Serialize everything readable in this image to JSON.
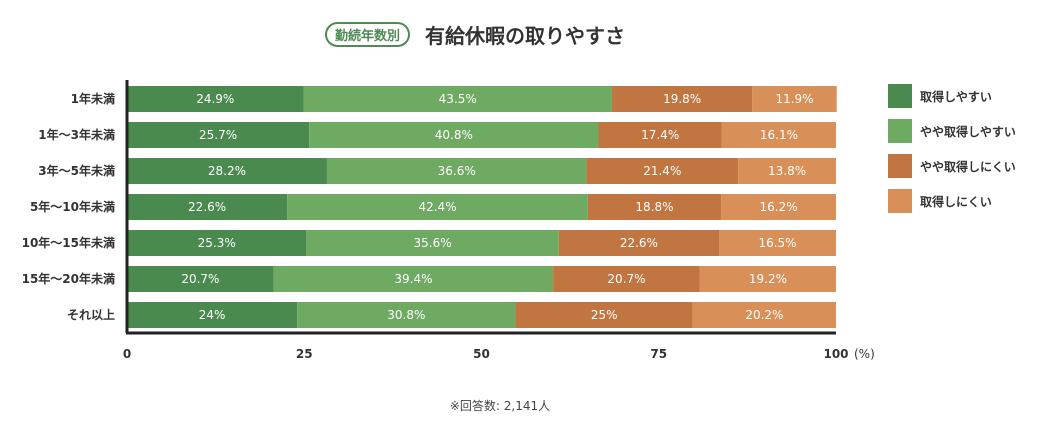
{
  "title": {
    "badge": "勤続年数別",
    "text": "有給休暇の取りやすさ"
  },
  "note": "※回答数: 2,141人",
  "chart_data": {
    "type": "bar",
    "orientation": "horizontal",
    "stacked": true,
    "categories": [
      "1年未満",
      "1年〜3年未満",
      "3年〜5年未満",
      "5年〜10年未満",
      "10年〜15年未満",
      "15年〜20年未満",
      "それ以上"
    ],
    "series": [
      {
        "name": "取得しやすい",
        "color": "#4a8a4f",
        "values": [
          24.9,
          25.7,
          28.2,
          22.6,
          25.3,
          20.7,
          24
        ]
      },
      {
        "name": "やや取得しやすい",
        "color": "#6eaa62",
        "values": [
          43.5,
          40.8,
          36.6,
          42.4,
          35.6,
          39.4,
          30.8
        ]
      },
      {
        "name": "やや取得しにくい",
        "color": "#c17641",
        "values": [
          19.8,
          17.4,
          21.4,
          18.8,
          22.6,
          20.7,
          25
        ]
      },
      {
        "name": "取得しにくい",
        "color": "#d98f58",
        "values": [
          11.9,
          16.1,
          13.8,
          16.2,
          16.5,
          19.2,
          20.2
        ]
      }
    ],
    "value_labels": [
      [
        "24.9%",
        "25.7%",
        "28.2%",
        "22.6%",
        "25.3%",
        "20.7%",
        "24%"
      ],
      [
        "43.5%",
        "40.8%",
        "36.6%",
        "42.4%",
        "35.6%",
        "39.4%",
        "30.8%"
      ],
      [
        "19.8%",
        "17.4%",
        "21.4%",
        "18.8%",
        "22.6%",
        "20.7%",
        "25%"
      ],
      [
        "11.9%",
        "16.1%",
        "13.8%",
        "16.2%",
        "16.5%",
        "19.2%",
        "20.2%"
      ]
    ],
    "xlim": [
      0,
      100
    ],
    "xticks": [
      0,
      25,
      50,
      75,
      100
    ],
    "xtick_labels": [
      "0",
      "25",
      "50",
      "75",
      "100"
    ],
    "xunit": "(%)",
    "grid": false,
    "legend_position": "right"
  }
}
